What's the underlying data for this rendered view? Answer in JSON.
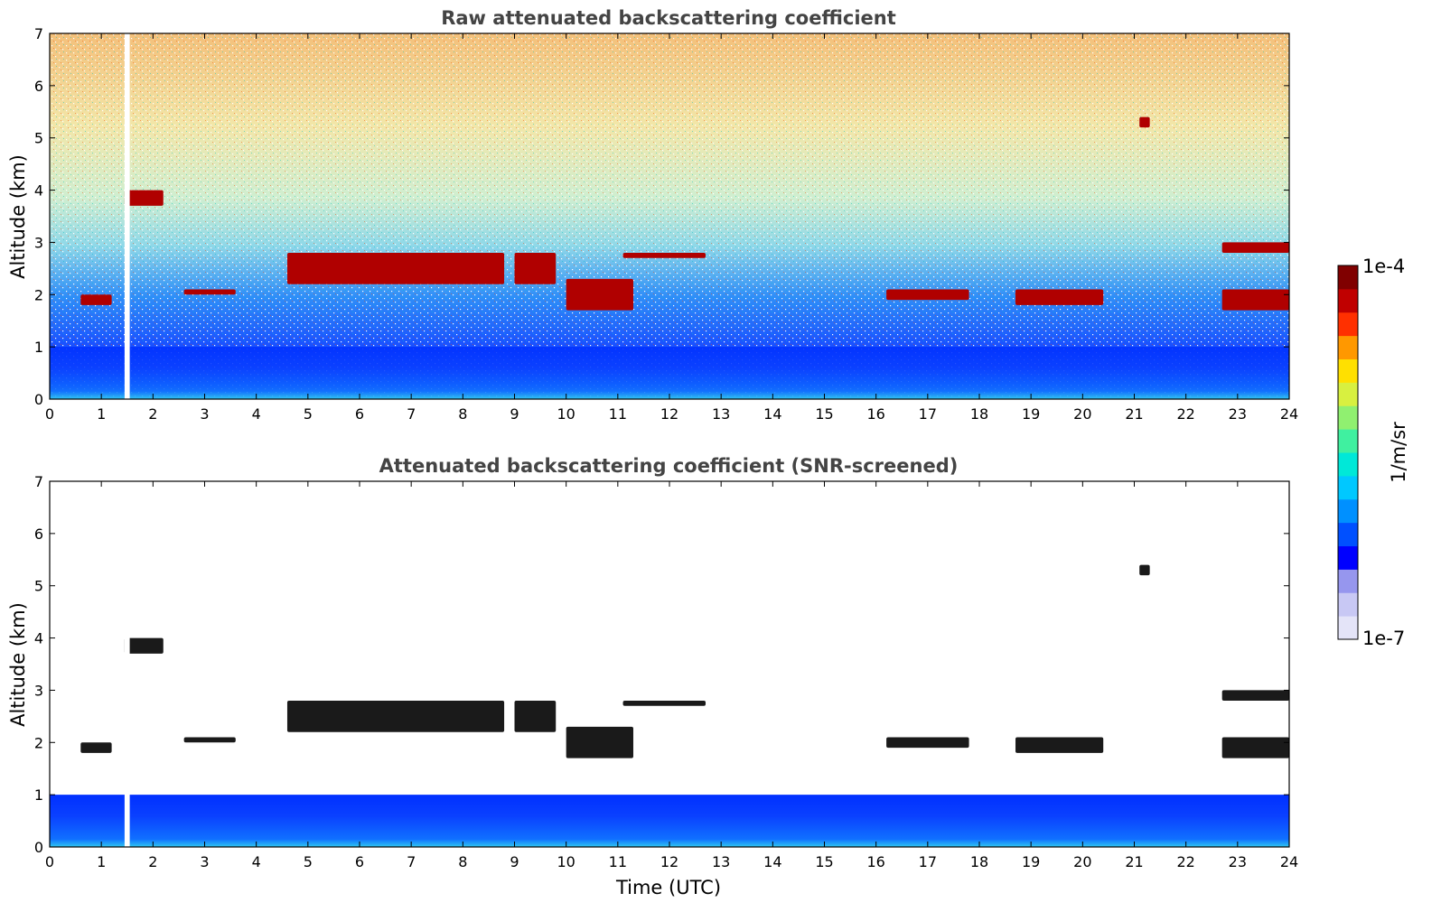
{
  "chart_data": [
    {
      "type": "heatmap",
      "title": "Raw attenuated backscattering coefficient",
      "xlabel": "",
      "ylabel": "Altitude (km)",
      "xlim": [
        0,
        24
      ],
      "ylim": [
        0,
        7
      ],
      "xticks": [
        "0",
        "1",
        "2",
        "3",
        "4",
        "5",
        "6",
        "7",
        "8",
        "9",
        "10",
        "11",
        "12",
        "13",
        "14",
        "15",
        "16",
        "17",
        "18",
        "19",
        "20",
        "21",
        "22",
        "23",
        "24"
      ],
      "yticks": [
        "0",
        "1",
        "2",
        "3",
        "4",
        "5",
        "6",
        "7"
      ],
      "missing_data": [
        {
          "x_start": 1.45,
          "x_end": 1.55
        }
      ],
      "features": [
        {
          "kind": "cloud_layer",
          "x_start": 4.6,
          "x_end": 8.8,
          "altitude": [
            2.2,
            2.8
          ]
        },
        {
          "kind": "cloud_layer",
          "x_start": 9.0,
          "x_end": 9.8,
          "altitude": [
            2.2,
            2.8
          ]
        },
        {
          "kind": "cloud_layer",
          "x_start": 10.0,
          "x_end": 11.3,
          "altitude": [
            1.7,
            2.3
          ]
        },
        {
          "kind": "cloud_layer",
          "x_start": 11.1,
          "x_end": 12.7,
          "altitude": [
            2.7,
            2.8
          ]
        },
        {
          "kind": "cloud_layer",
          "x_start": 2.6,
          "x_end": 3.6,
          "altitude": [
            2.0,
            2.1
          ]
        },
        {
          "kind": "cloud_layer",
          "x_start": 0.6,
          "x_end": 1.2,
          "altitude": [
            1.8,
            2.0
          ]
        },
        {
          "kind": "cloud_layer",
          "x_start": 1.45,
          "x_end": 2.2,
          "altitude": [
            3.7,
            4.0
          ]
        },
        {
          "kind": "cloud_layer",
          "x_start": 16.2,
          "x_end": 17.8,
          "altitude": [
            1.9,
            2.1
          ]
        },
        {
          "kind": "cloud_layer",
          "x_start": 18.7,
          "x_end": 20.4,
          "altitude": [
            1.8,
            2.1
          ]
        },
        {
          "kind": "cloud_layer",
          "x_start": 22.7,
          "x_end": 24.0,
          "altitude": [
            1.7,
            2.1
          ]
        },
        {
          "kind": "cloud_layer",
          "x_start": 22.7,
          "x_end": 24.0,
          "altitude": [
            2.8,
            3.0
          ]
        },
        {
          "kind": "cloud_layer",
          "x_start": 21.1,
          "x_end": 21.3,
          "altitude": [
            5.2,
            5.4
          ]
        },
        {
          "kind": "boundary_layer",
          "x_start": 0,
          "x_end": 24,
          "altitude": [
            0,
            1.0
          ]
        },
        {
          "kind": "noise",
          "x_start": 0,
          "x_end": 24,
          "altitude": [
            1.0,
            7.0
          ]
        }
      ]
    },
    {
      "type": "heatmap",
      "title": "Attenuated backscattering coefficient (SNR-screened)",
      "xlabel": "Time (UTC)",
      "ylabel": "Altitude (km)",
      "xlim": [
        0,
        24
      ],
      "ylim": [
        0,
        7
      ],
      "xticks": [
        "0",
        "1",
        "2",
        "3",
        "4",
        "5",
        "6",
        "7",
        "8",
        "9",
        "10",
        "11",
        "12",
        "13",
        "14",
        "15",
        "16",
        "17",
        "18",
        "19",
        "20",
        "21",
        "22",
        "23",
        "24"
      ],
      "yticks": [
        "0",
        "1",
        "2",
        "3",
        "4",
        "5",
        "6",
        "7"
      ],
      "missing_data": [
        {
          "x_start": 1.45,
          "x_end": 1.55
        }
      ],
      "features": [
        {
          "kind": "cloud_layer",
          "x_start": 4.6,
          "x_end": 8.8,
          "altitude": [
            2.2,
            2.8
          ]
        },
        {
          "kind": "cloud_layer",
          "x_start": 9.0,
          "x_end": 9.8,
          "altitude": [
            2.2,
            2.8
          ]
        },
        {
          "kind": "cloud_layer",
          "x_start": 10.0,
          "x_end": 11.3,
          "altitude": [
            1.7,
            2.3
          ]
        },
        {
          "kind": "cloud_layer",
          "x_start": 11.1,
          "x_end": 12.7,
          "altitude": [
            2.7,
            2.8
          ]
        },
        {
          "kind": "cloud_layer",
          "x_start": 2.6,
          "x_end": 3.6,
          "altitude": [
            2.0,
            2.1
          ]
        },
        {
          "kind": "cloud_layer",
          "x_start": 0.6,
          "x_end": 1.2,
          "altitude": [
            1.8,
            2.0
          ]
        },
        {
          "kind": "cloud_layer",
          "x_start": 1.45,
          "x_end": 2.2,
          "altitude": [
            3.7,
            4.0
          ]
        },
        {
          "kind": "cloud_layer",
          "x_start": 16.2,
          "x_end": 17.8,
          "altitude": [
            1.9,
            2.1
          ]
        },
        {
          "kind": "cloud_layer",
          "x_start": 18.7,
          "x_end": 20.4,
          "altitude": [
            1.8,
            2.1
          ]
        },
        {
          "kind": "cloud_layer",
          "x_start": 22.7,
          "x_end": 24.0,
          "altitude": [
            1.7,
            2.1
          ]
        },
        {
          "kind": "cloud_layer",
          "x_start": 22.7,
          "x_end": 24.0,
          "altitude": [
            2.8,
            3.0
          ]
        },
        {
          "kind": "cloud_layer",
          "x_start": 21.1,
          "x_end": 21.3,
          "altitude": [
            5.2,
            5.4
          ]
        },
        {
          "kind": "boundary_layer",
          "x_start": 0,
          "x_end": 24,
          "altitude": [
            0,
            1.0
          ]
        }
      ]
    }
  ],
  "colorbar": {
    "label": "1/m/sr",
    "max_label": "1e-4",
    "min_label": "1e-7",
    "colors": [
      "#e4e4f8",
      "#c8c8f4",
      "#9696ee",
      "#0000ff",
      "#0050ff",
      "#0090ff",
      "#00c8ff",
      "#00e8d8",
      "#40f0a0",
      "#90f070",
      "#d8f040",
      "#ffe000",
      "#ff9800",
      "#ff3000",
      "#c00000",
      "#800000"
    ]
  }
}
